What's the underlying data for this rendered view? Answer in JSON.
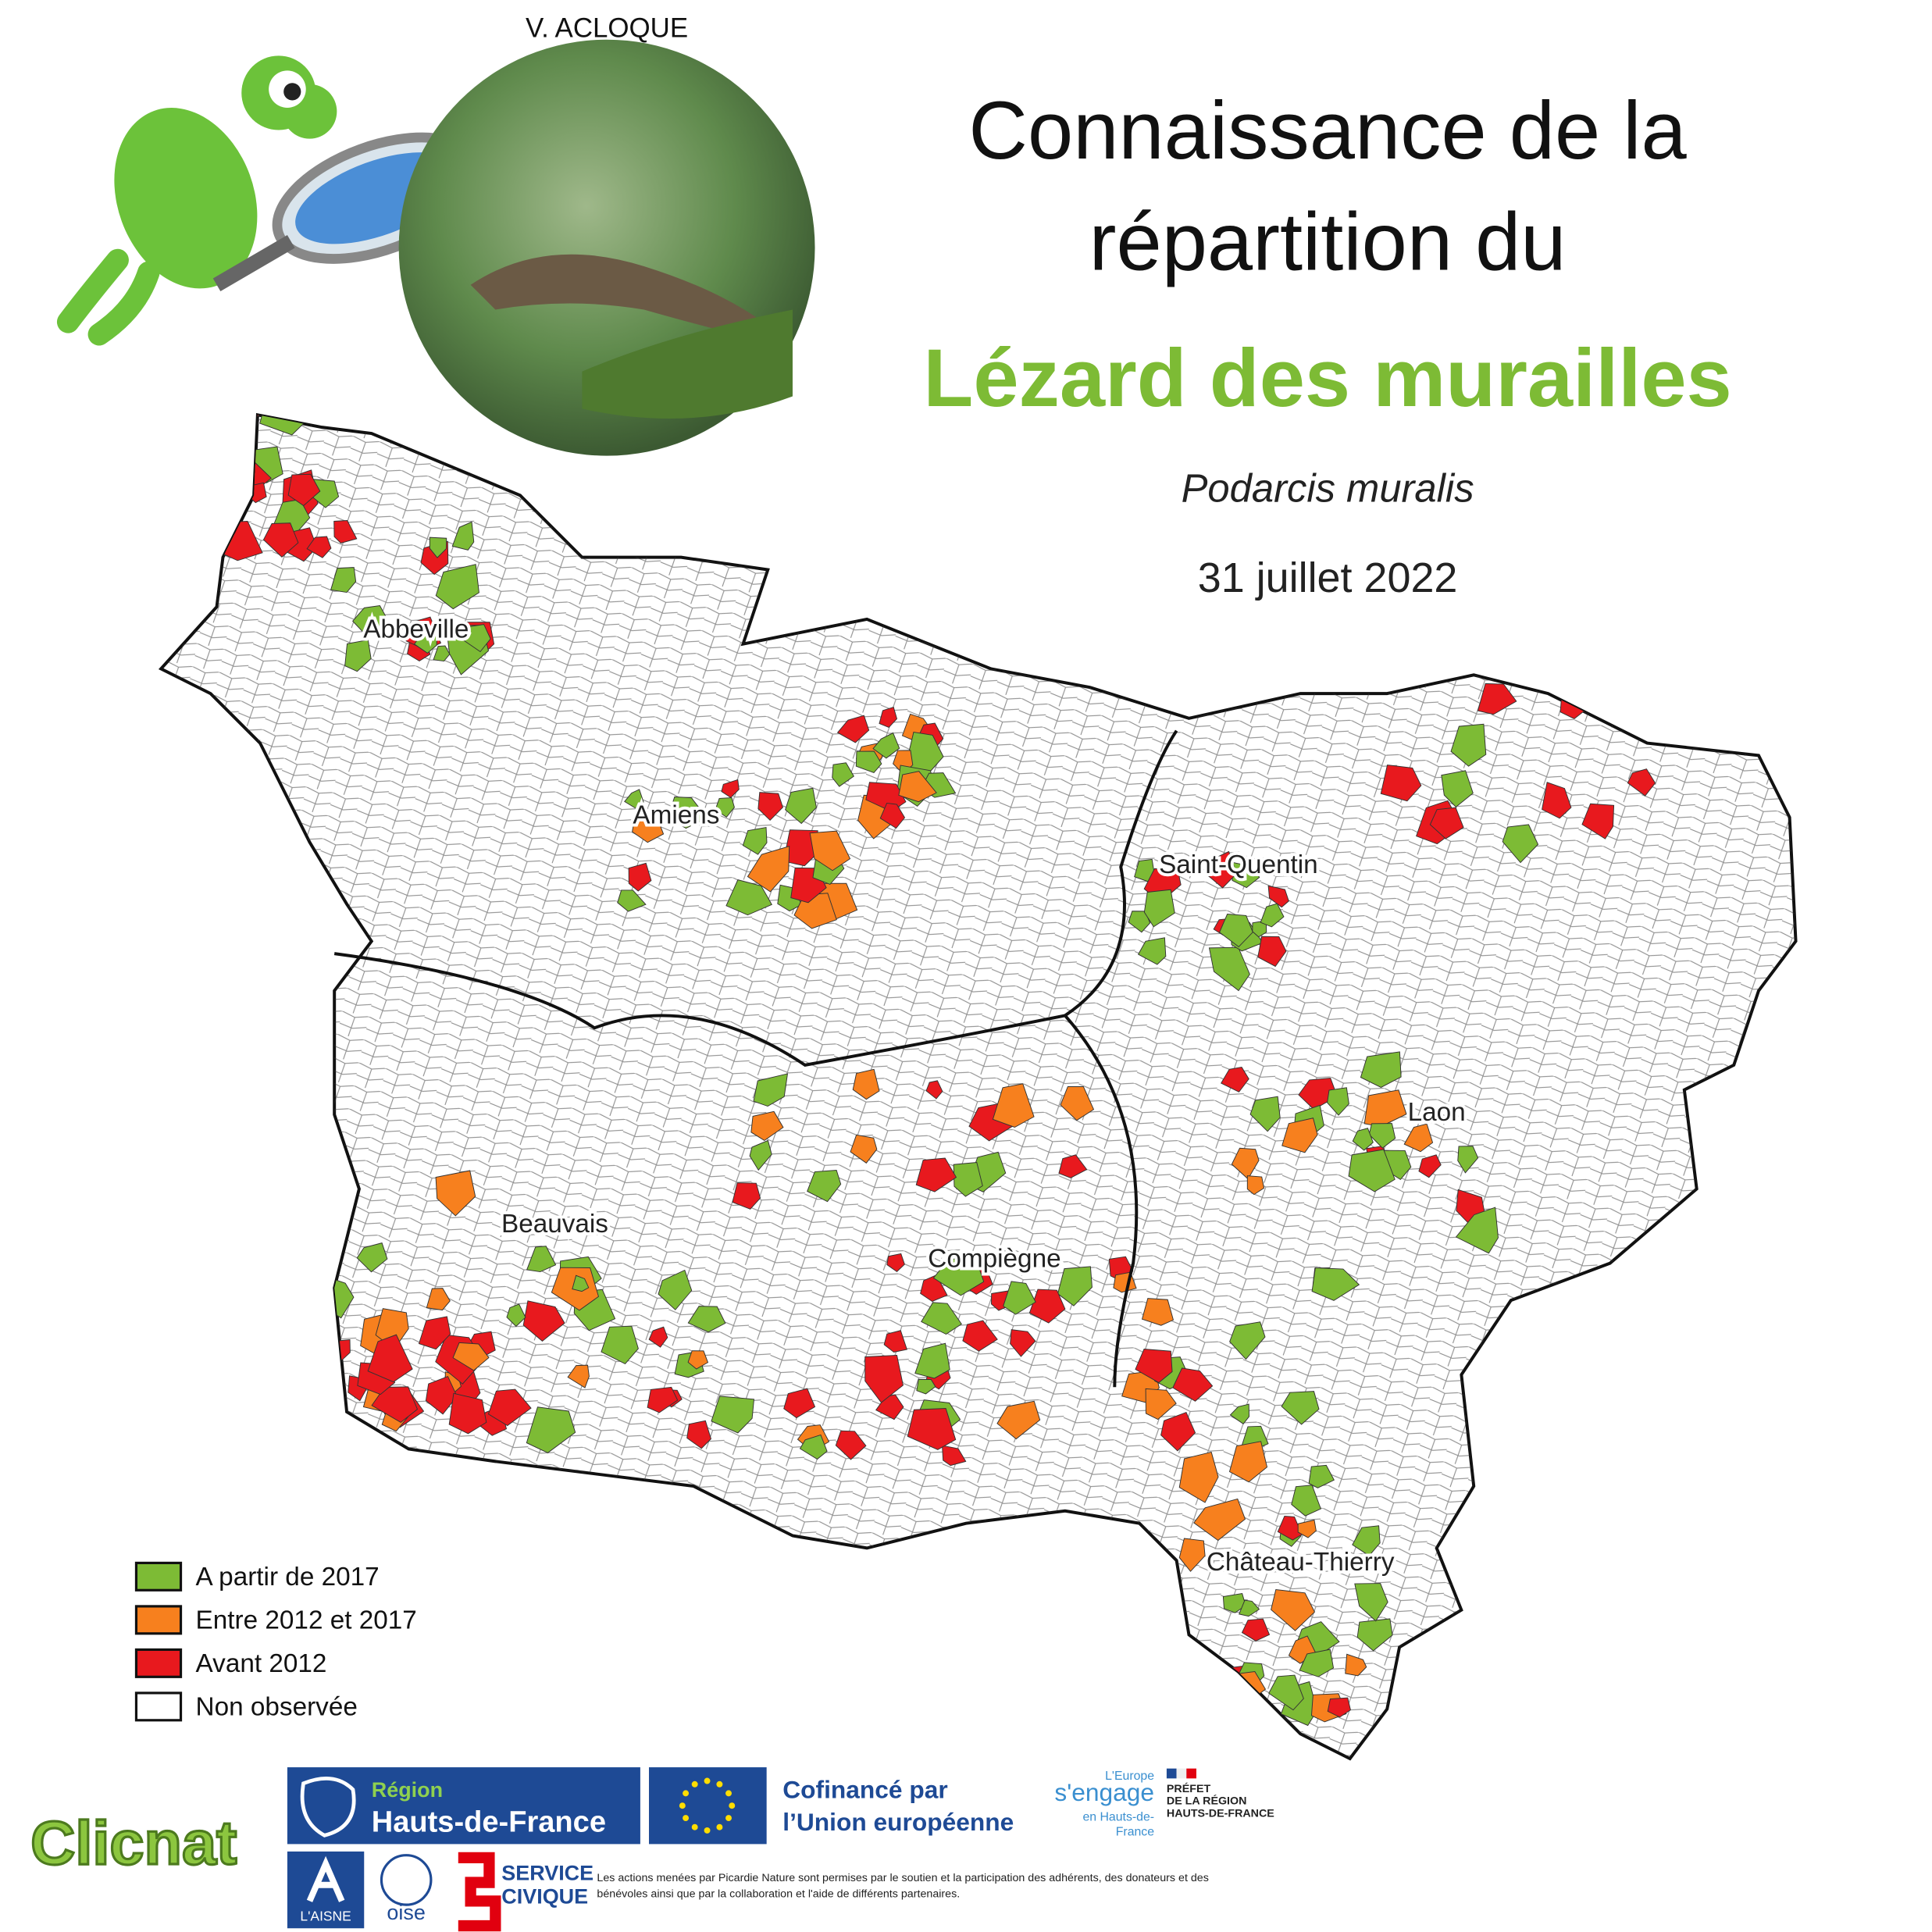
{
  "credit": "V. ACLOQUE",
  "header": {
    "line1": "Connaissance de la",
    "line2": "répartition du",
    "species": "Lézard des murailles",
    "latin": "Podarcis muralis",
    "date": "31 juillet 2022"
  },
  "map": {
    "cities": [
      "Abbeville",
      "Amiens",
      "Saint-Quentin",
      "Laon",
      "Beauvais",
      "Compiègne",
      "Château-Thierry"
    ],
    "legend": [
      {
        "label": "A partir de 2017",
        "color": "#7dbb35"
      },
      {
        "label": "Entre 2012 et 2017",
        "color": "#f7801e"
      },
      {
        "label": "Avant 2012",
        "color": "#e8191e"
      },
      {
        "label": "Non observée",
        "color": "#ffffff"
      }
    ]
  },
  "footer": {
    "region": [
      "Région",
      "Hauts-de-France"
    ],
    "eu": [
      "Cofinancé par",
      "l’Union européenne"
    ],
    "europe_engage": [
      "L'Europe",
      "s'engage",
      "en Hauts-de-",
      "France"
    ],
    "prefet": [
      "PRÉFET",
      "DE LA RÉGION",
      "HAUTS-DE-FRANCE"
    ],
    "aisne": "L'AISNE",
    "oise": "oise",
    "service_civique": [
      "SERVICE",
      "CIVIQUE"
    ],
    "disclaimer": [
      "Les actions menées par Picardie Nature sont permises par le soutien et la participation des adhérents, des donateurs et des",
      "bénévoles ainsi que par la collaboration et l'aide de différents partenaires."
    ],
    "brand": "Clicnat"
  }
}
